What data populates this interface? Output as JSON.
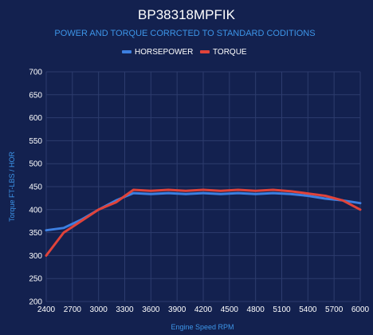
{
  "title": "BP38318MPFIK",
  "subtitle": "POWER AND TORQUE CORRCTED TO STANDARD CODITIONS",
  "colors": {
    "background": "#13214f",
    "accent_text": "#3d95e8",
    "horsepower": "#3d7fe0",
    "torque": "#e0433a",
    "grid": "#2d3c6e"
  },
  "chart_data": {
    "type": "line",
    "title": "BP38318MPFIK",
    "subtitle": "POWER AND TORQUE CORRCTED TO STANDARD CODITIONS",
    "xlabel": "Engine Speed RPM",
    "ylabel": "Torque FT-LBS / HOR",
    "xlim": [
      2400,
      6000
    ],
    "ylim": [
      200,
      700
    ],
    "xticks": [
      2400,
      2700,
      3000,
      3300,
      3600,
      3900,
      4200,
      4500,
      4800,
      5100,
      5400,
      5700,
      6000
    ],
    "yticks": [
      200,
      250,
      300,
      350,
      400,
      450,
      500,
      550,
      600,
      650,
      700
    ],
    "grid": true,
    "legend_position": "top-center",
    "series": [
      {
        "name": "HORSEPOWER",
        "color": "#3d7fe0",
        "x": [
          2400,
          2600,
          2800,
          3000,
          3200,
          3400,
          3600,
          3800,
          4000,
          4200,
          4400,
          4600,
          4800,
          5000,
          5200,
          5400,
          5600,
          5800,
          6000
        ],
        "y": [
          355,
          360,
          378,
          400,
          420,
          436,
          434,
          436,
          434,
          436,
          434,
          436,
          434,
          436,
          434,
          430,
          424,
          420,
          414
        ]
      },
      {
        "name": "TORQUE",
        "color": "#e0433a",
        "x": [
          2400,
          2600,
          2800,
          3000,
          3200,
          3400,
          3600,
          3800,
          4000,
          4200,
          4400,
          4600,
          4800,
          5000,
          5200,
          5400,
          5600,
          5800,
          6000
        ],
        "y": [
          300,
          350,
          375,
          400,
          416,
          443,
          441,
          443,
          441,
          443,
          441,
          443,
          441,
          443,
          440,
          435,
          430,
          420,
          400
        ]
      }
    ]
  }
}
